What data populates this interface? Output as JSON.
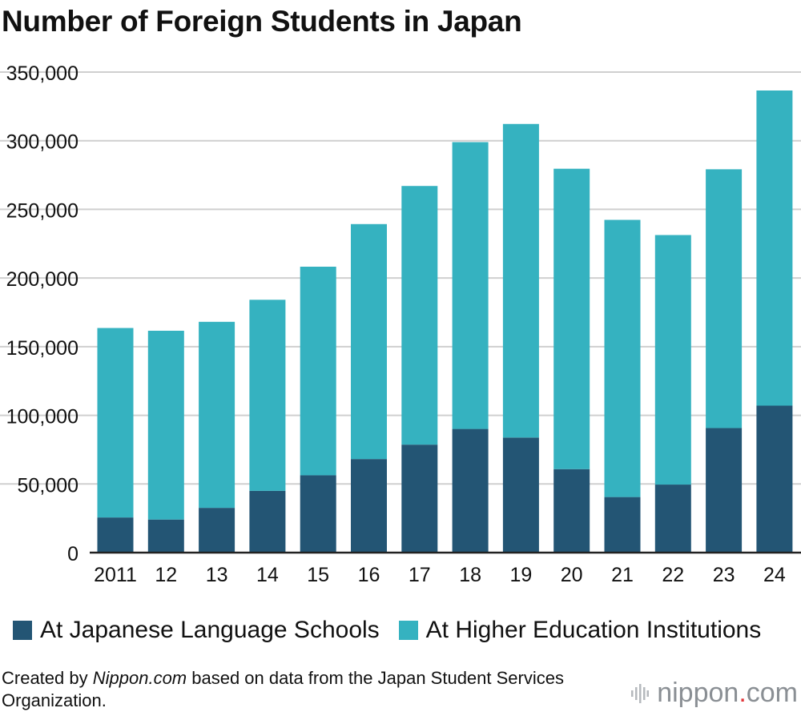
{
  "chart_data": {
    "type": "bar",
    "stacked": true,
    "title": "Number of Foreign Students in Japan",
    "categories": [
      "2011",
      "12",
      "13",
      "14",
      "15",
      "16",
      "17",
      "18",
      "19",
      "20",
      "21",
      "22",
      "23",
      "24"
    ],
    "series": [
      {
        "name": "At Japanese Language Schools",
        "color": "#235574",
        "values": [
          25600,
          24100,
          32600,
          44970,
          56317,
          68165,
          78658,
          90079,
          83811,
          60814,
          40479,
          49556,
          90727,
          107041
        ]
      },
      {
        "name": "At Higher Education Institutions",
        "color": "#35b2c0",
        "values": [
          138000,
          137500,
          135500,
          139186,
          151929,
          171122,
          188384,
          208901,
          228403,
          218783,
          201877,
          181741,
          188477,
          229549
        ]
      }
    ],
    "yaxis": {
      "min": 0,
      "max": 350000,
      "ticks": [
        0,
        50000,
        100000,
        150000,
        200000,
        250000,
        300000,
        350000
      ],
      "tick_labels": [
        "0",
        "50,000",
        "100,000",
        "150,000",
        "200,000",
        "250,000",
        "300,000",
        "350,000"
      ]
    },
    "grid": true,
    "legend": "bottom"
  },
  "footer": {
    "prefix": "Created by ",
    "source_name": "Nippon.com",
    "suffix": " based on data from the Japan Student Services Organization."
  },
  "brand": {
    "left": "nippon",
    "dot": ".",
    "right": "com",
    "icon": "sound-bars-icon"
  }
}
